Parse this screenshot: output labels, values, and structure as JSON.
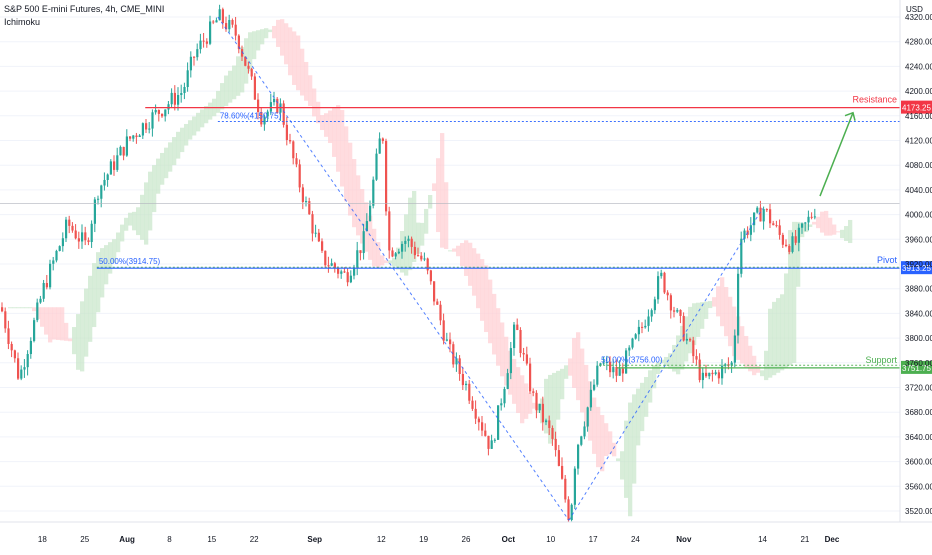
{
  "header": {
    "title": "S&P 500 E-mini Futures, 4h, CME_MINI",
    "indicator": "Ichimoku"
  },
  "colors": {
    "up": "#26a69a",
    "down": "#ef5350",
    "resistance": "#f23645",
    "pivot": "#2962ff",
    "support": "#4caf50",
    "fib": "#2962ff",
    "cloud_bull": "#c8e6c9",
    "cloud_bear": "#ffcdd2",
    "axis_text": "#131722",
    "current_price_line": "#b2b5be"
  },
  "chart_data": {
    "type": "candlestick",
    "currency": "USD",
    "ylim": [
      3500,
      4340
    ],
    "yticks": [
      3520,
      3560,
      3600,
      3640,
      3680,
      3720,
      3760,
      3800,
      3840,
      3880,
      3920,
      3960,
      4000,
      4040,
      4080,
      4120,
      4160,
      4200,
      4240,
      4280,
      4320
    ],
    "ytick_labels": [
      "3520.00",
      "3560.00",
      "3600.00",
      "3640.00",
      "3680.00",
      "3720.00",
      "3760.00",
      "3800.00",
      "3840.00",
      "3880.00",
      "3920.00",
      "3960.00",
      "4000.00",
      "4040.00",
      "4080.00",
      "4120.00",
      "4160.00",
      "4200.00",
      "4240.00",
      "4280.00",
      "4320.00"
    ],
    "xticks": [
      "18",
      "25",
      "Aug",
      "8",
      "15",
      "22",
      "Sep",
      "12",
      "19",
      "26",
      "Oct",
      "10",
      "17",
      "24",
      "Nov",
      "14",
      "21",
      "Dec"
    ],
    "price_path": [
      {
        "date": "Jul 11",
        "price": 3850
      },
      {
        "date": "Jul 14",
        "price": 3735
      },
      {
        "date": "Jul 18",
        "price": 3880
      },
      {
        "date": "Jul 22",
        "price": 3985
      },
      {
        "date": "Jul 25",
        "price": 3950
      },
      {
        "date": "Jul 27",
        "price": 4040
      },
      {
        "date": "Aug 1",
        "price": 4120
      },
      {
        "date": "Aug 4",
        "price": 4150
      },
      {
        "date": "Aug 10",
        "price": 4200
      },
      {
        "date": "Aug 12",
        "price": 4260
      },
      {
        "date": "Aug 16",
        "price": 4320
      },
      {
        "date": "Aug 19",
        "price": 4290
      },
      {
        "date": "Aug 23",
        "price": 4160
      },
      {
        "date": "Aug 26",
        "price": 4180
      },
      {
        "date": "Aug 29",
        "price": 4060
      },
      {
        "date": "Sep 2",
        "price": 3930
      },
      {
        "date": "Sep 6",
        "price": 3900
      },
      {
        "date": "Sep 9",
        "price": 3960
      },
      {
        "date": "Sep 12",
        "price": 4145
      },
      {
        "date": "Sep 13",
        "price": 3940
      },
      {
        "date": "Sep 16",
        "price": 3960
      },
      {
        "date": "Sep 19",
        "price": 3920
      },
      {
        "date": "Sep 23",
        "price": 3780
      },
      {
        "date": "Sep 26",
        "price": 3720
      },
      {
        "date": "Sep 30",
        "price": 3620
      },
      {
        "date": "Oct 4",
        "price": 3820
      },
      {
        "date": "Oct 7",
        "price": 3700
      },
      {
        "date": "Oct 10",
        "price": 3640
      },
      {
        "date": "Oct 13",
        "price": 3505
      },
      {
        "date": "Oct 14",
        "price": 3620
      },
      {
        "date": "Oct 18",
        "price": 3760
      },
      {
        "date": "Oct 21",
        "price": 3740
      },
      {
        "date": "Oct 25",
        "price": 3820
      },
      {
        "date": "Oct 28",
        "price": 3900
      },
      {
        "date": "Nov 2",
        "price": 3780
      },
      {
        "date": "Nov 4",
        "price": 3730
      },
      {
        "date": "Nov 9",
        "price": 3760
      },
      {
        "date": "Nov 10",
        "price": 3960
      },
      {
        "date": "Nov 14",
        "price": 4010
      },
      {
        "date": "Nov 17",
        "price": 3960
      },
      {
        "date": "Nov 19",
        "price": 3950
      },
      {
        "date": "Nov 23",
        "price": 4018
      }
    ],
    "levels": [
      {
        "name": "Resistance",
        "price": 4173.25,
        "label": "4173.25"
      },
      {
        "name": "Pivot",
        "price": 3913.25,
        "label": "3913.25"
      },
      {
        "name": "Support",
        "price": 3751.75,
        "label": "3751.75"
      }
    ],
    "fib_annotations": [
      {
        "text": "78.60%(4150.75)",
        "price": 4150.75
      },
      {
        "text": "50.00%(3914.75)",
        "price": 3914.75
      },
      {
        "text": "50.00%(3756.00)",
        "price": 3756.0
      }
    ],
    "current_price": 4018,
    "projection": {
      "from": 4030,
      "to": 4165
    },
    "grid": true,
    "legend_position": "top-left"
  }
}
